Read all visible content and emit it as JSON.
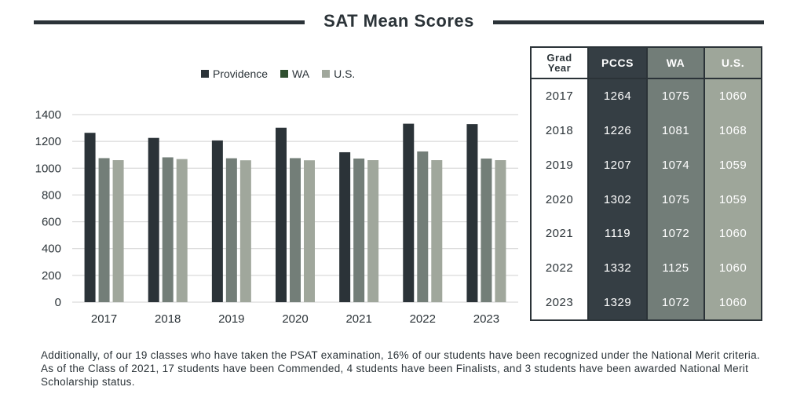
{
  "title": "SAT Mean Scores",
  "colors": {
    "providence": "#2b3338",
    "wa": "#737e78",
    "us": "#a0a79c",
    "grid": "#d0d0d0",
    "wa_legend": "#2f4f2f"
  },
  "legend": [
    "Providence",
    "WA",
    "U.S."
  ],
  "chart_data": {
    "type": "bar",
    "categories": [
      "2017",
      "2018",
      "2019",
      "2020",
      "2021",
      "2022",
      "2023"
    ],
    "series": [
      {
        "name": "Providence",
        "values": [
          1264,
          1226,
          1207,
          1302,
          1119,
          1332,
          1329
        ]
      },
      {
        "name": "WA",
        "values": [
          1075,
          1081,
          1074,
          1075,
          1072,
          1125,
          1072
        ]
      },
      {
        "name": "U.S.",
        "values": [
          1060,
          1068,
          1059,
          1059,
          1060,
          1060,
          1060
        ]
      }
    ],
    "yticks": [
      "1400",
      "1200",
      "1000",
      "800",
      "600",
      "400",
      "200",
      "0"
    ],
    "ylim": [
      0,
      1400
    ],
    "grid": true,
    "legend_position": "top"
  },
  "table": {
    "header": {
      "year_line1": "Grad",
      "year_line2": "Year",
      "pccs": "PCCS",
      "wa": "WA",
      "us": "U.S."
    },
    "rows": [
      {
        "year": "2017",
        "pccs": "1264",
        "wa": "1075",
        "us": "1060"
      },
      {
        "year": "2018",
        "pccs": "1226",
        "wa": "1081",
        "us": "1068"
      },
      {
        "year": "2019",
        "pccs": "1207",
        "wa": "1074",
        "us": "1059"
      },
      {
        "year": "2020",
        "pccs": "1302",
        "wa": "1075",
        "us": "1059"
      },
      {
        "year": "2021",
        "pccs": "1119",
        "wa": "1072",
        "us": "1060"
      },
      {
        "year": "2022",
        "pccs": "1332",
        "wa": "1125",
        "us": "1060"
      },
      {
        "year": "2023",
        "pccs": "1329",
        "wa": "1072",
        "us": "1060"
      }
    ]
  },
  "footnote": "Additionally, of our 19 classes who have taken the PSAT examination, 16% of our students have been recognized under the National Merit criteria.  As of the Class of 2021, 17 students have been Commended, 4 students have been Finalists, and 3 students have been awarded National Merit Scholarship status."
}
